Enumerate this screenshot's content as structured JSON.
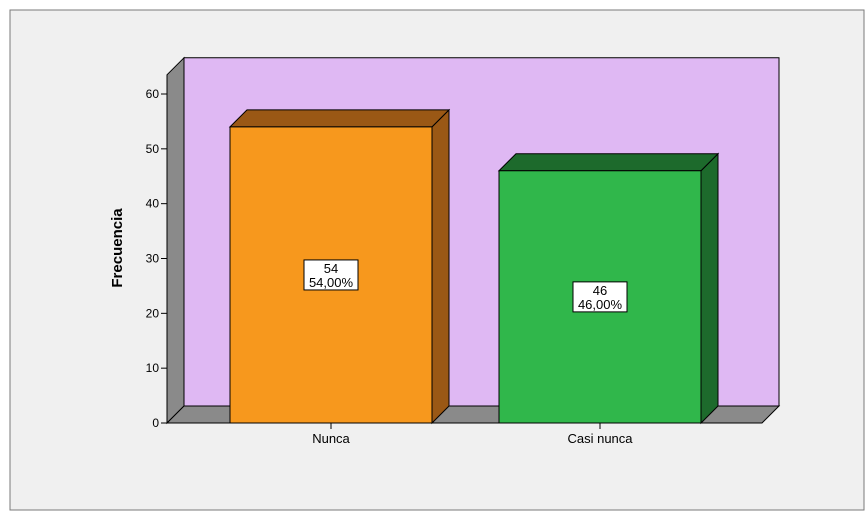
{
  "chart_data": {
    "type": "bar",
    "categories": [
      "Nunca",
      "Casi nunca"
    ],
    "values": [
      54,
      46
    ],
    "percent_labels": [
      "54,00%",
      "46,00%"
    ],
    "title": "",
    "xlabel": "",
    "ylabel": "Frecuencia",
    "ylim": [
      0,
      60
    ],
    "yticks": [
      "0",
      "10",
      "20",
      "30",
      "40",
      "50",
      "60"
    ],
    "grid": false,
    "legend": "none",
    "style": "3d",
    "colors": {
      "bars": [
        "#f7981d",
        "#30b74b"
      ],
      "bar_sides": [
        "#9a5815",
        "#1d6a2c"
      ],
      "plot_back_wall": "#dfb8f3",
      "plot_side_wall": "#8a8a8a",
      "plot_floor": "#8a8a8a",
      "chart_background": "#f0f0f0"
    }
  }
}
